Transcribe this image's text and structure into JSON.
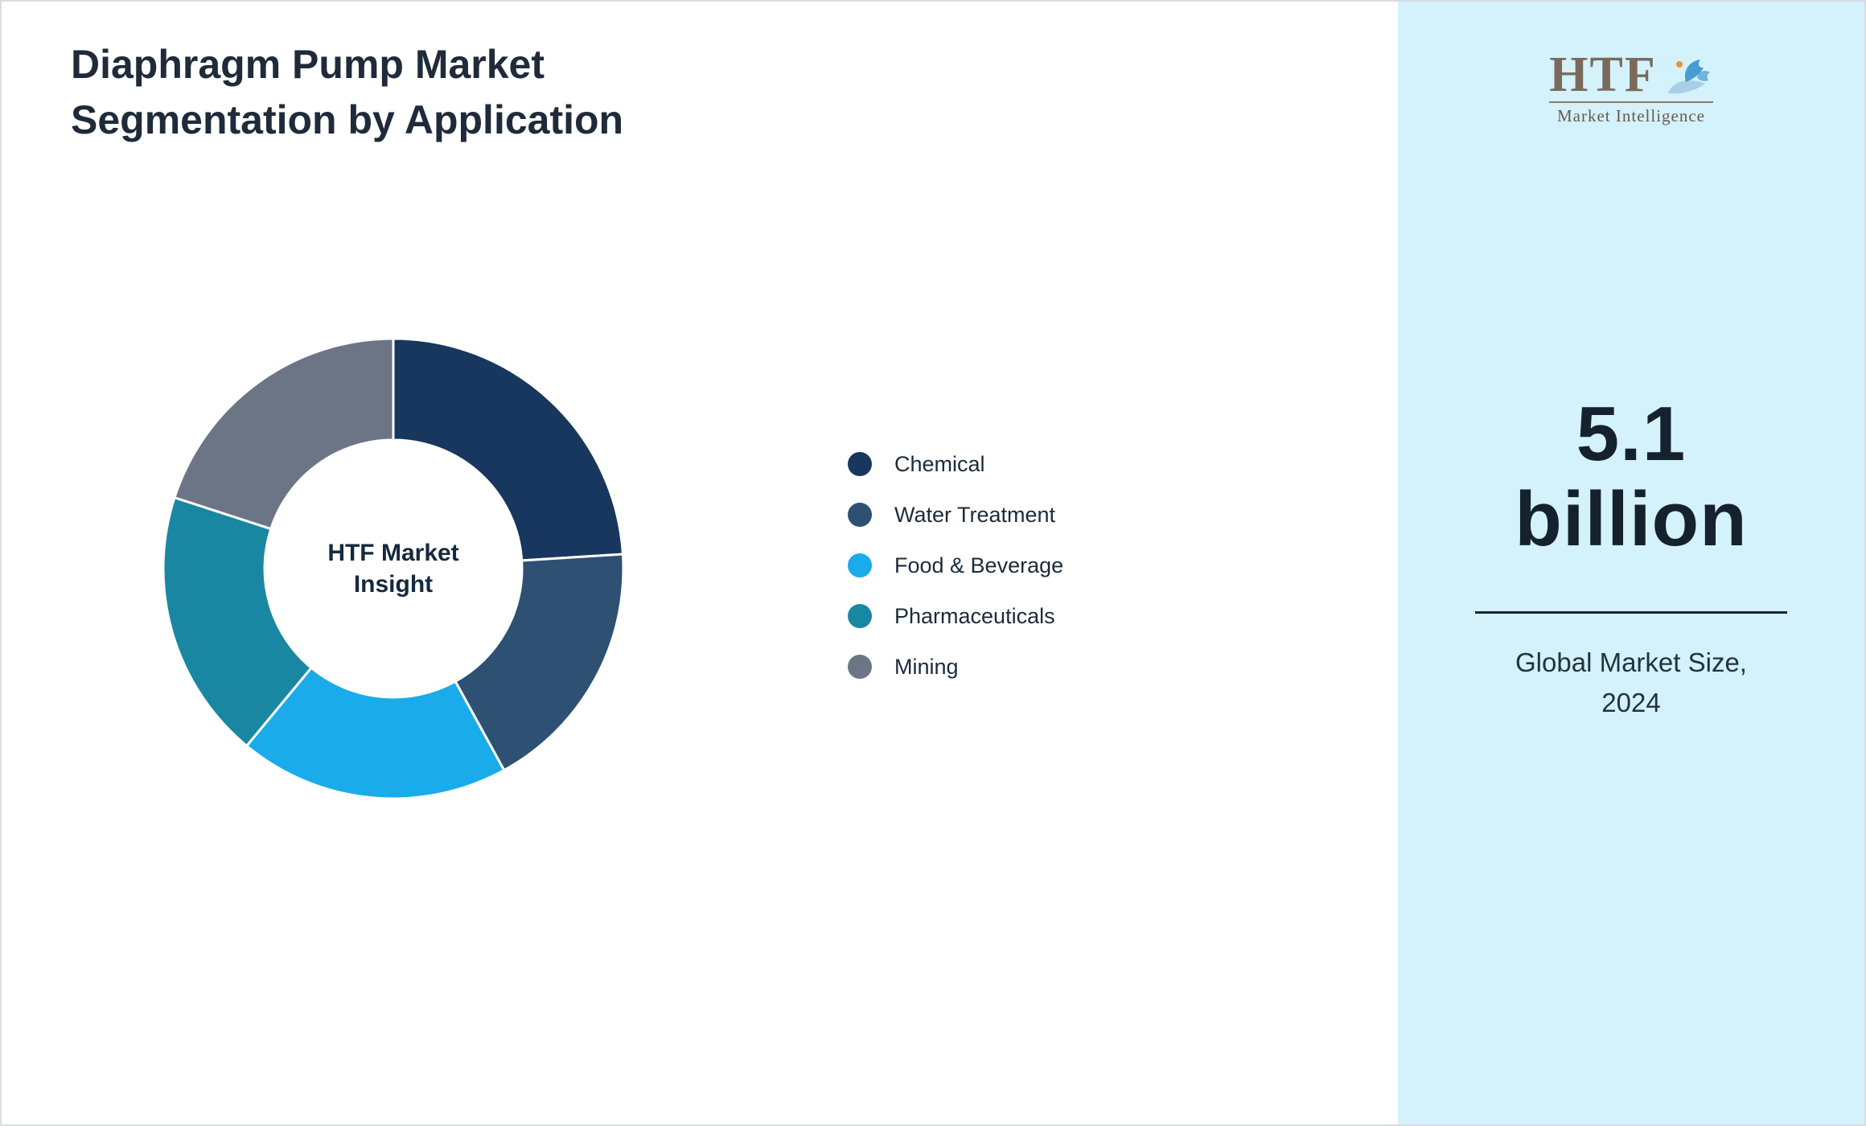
{
  "page": {
    "border_color": "#d8dde3",
    "background": "#ffffff"
  },
  "header": {
    "title_line1": "Diaphragm Pump Market",
    "title_line2": "Segmentation by Application"
  },
  "chart_data": {
    "type": "pie",
    "variant": "donut",
    "title": "Diaphragm Pump Market Segmentation by Application",
    "center_line1": "HTF Market",
    "center_line2": "Insight",
    "legend_position": "right",
    "start_angle_deg": 0,
    "direction": "clockwise",
    "units": "percent (estimated from slice angles; no numeric labels shown)",
    "segments": [
      {
        "label": "Chemical",
        "value": 24,
        "color": "#17375e"
      },
      {
        "label": "Water Treatment",
        "value": 18,
        "color": "#2e5072"
      },
      {
        "label": "Food & Beverage",
        "value": 19,
        "color": "#1aabea"
      },
      {
        "label": "Pharmaceuticals",
        "value": 19,
        "color": "#1a87a2"
      },
      {
        "label": "Mining",
        "value": 20,
        "color": "#6b7585"
      }
    ]
  },
  "sidebar": {
    "background": "#d3f2fb",
    "logo": {
      "text": "HTF",
      "subtext": "Market Intelligence",
      "dolphin_color": "#4a9bd2",
      "accent_color": "#e8923a"
    },
    "value_line1": "5.1",
    "value_line2": "billion",
    "caption_line1": "Global Market Size,",
    "caption_line2": "2024"
  }
}
